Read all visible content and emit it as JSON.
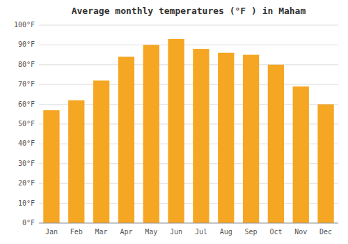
{
  "chart_data": {
    "type": "bar",
    "title": "Average monthly temperatures (°F ) in Maham",
    "categories": [
      "Jan",
      "Feb",
      "Mar",
      "Apr",
      "May",
      "Jun",
      "Jul",
      "Aug",
      "Sep",
      "Oct",
      "Nov",
      "Dec"
    ],
    "values": [
      57,
      62,
      72,
      84,
      90,
      93,
      88,
      86,
      85,
      80,
      69,
      60
    ],
    "color": "#F5A623",
    "ylim": [
      0,
      100
    ],
    "yticks": [
      {
        "value": 0,
        "label": "0°F"
      },
      {
        "value": 10,
        "label": "10°F"
      },
      {
        "value": 20,
        "label": "20°F"
      },
      {
        "value": 30,
        "label": "30°F"
      },
      {
        "value": 40,
        "label": "40°F"
      },
      {
        "value": 50,
        "label": "50°F"
      },
      {
        "value": 60,
        "label": "60°F"
      },
      {
        "value": 70,
        "label": "70°F"
      },
      {
        "value": 80,
        "label": "80°F"
      },
      {
        "value": 90,
        "label": "90°F"
      },
      {
        "value": 100,
        "label": "100°F"
      }
    ],
    "grid": true
  }
}
